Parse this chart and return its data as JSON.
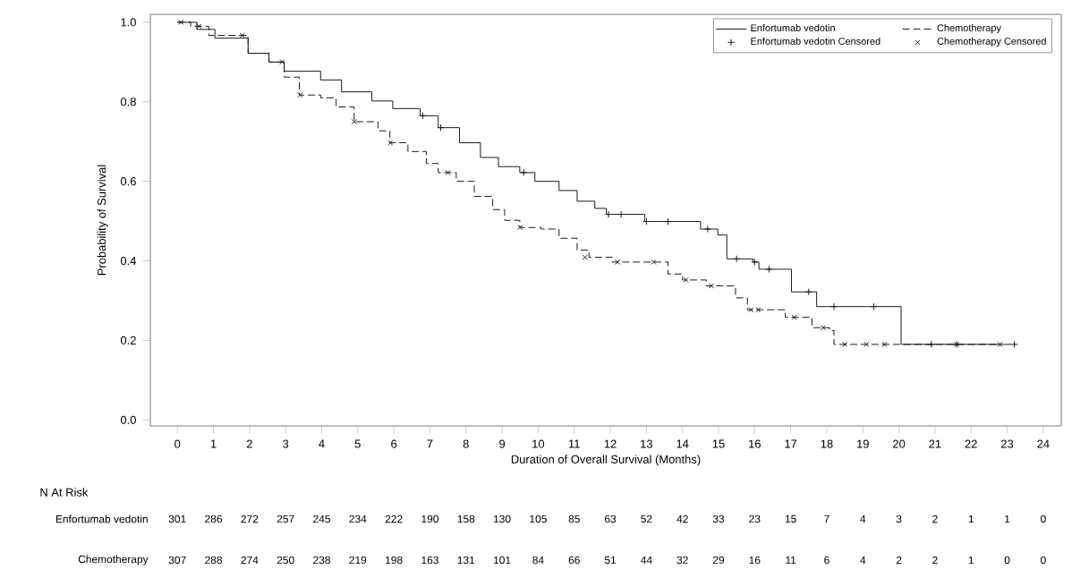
{
  "chart_data": {
    "type": "step",
    "xlabel": "Duration of Overall Survival (Months)",
    "ylabel": "Probability of Survival",
    "xlim": [
      -0.75,
      24.5
    ],
    "ylim": [
      -0.015,
      1.02
    ],
    "xticks": [
      0,
      1,
      2,
      3,
      4,
      5,
      6,
      7,
      8,
      9,
      10,
      11,
      12,
      13,
      14,
      15,
      16,
      17,
      18,
      19,
      20,
      21,
      22,
      23,
      24
    ],
    "yticks": [
      {
        "value": 0,
        "label": "0.0"
      },
      0.2,
      0.4,
      0.6,
      0.8,
      {
        "value": 1,
        "label": "1.0"
      }
    ],
    "legend": "top right",
    "series": [
      {
        "name": "Enfortumab vedotin",
        "color": "#1a1a1a",
        "line_style": "solid",
        "marker": "none",
        "x": [
          0,
          0.54,
          1.04,
          1.96,
          2.54,
          2.96,
          3.97,
          4.55,
          5.39,
          5.97,
          6.73,
          7.23,
          7.82,
          8.4,
          8.9,
          9.49,
          9.91,
          10.58,
          11.08,
          11.57,
          11.89,
          12.95,
          14.0,
          14.5,
          14.98,
          15.23,
          15.96,
          16.12,
          16.85,
          17.02,
          17.67,
          17.72,
          19.13,
          20.06,
          23.11
        ],
        "values": [
          1.0,
          0.982,
          0.96,
          0.922,
          0.9,
          0.877,
          0.855,
          0.825,
          0.802,
          0.783,
          0.765,
          0.735,
          0.697,
          0.66,
          0.637,
          0.622,
          0.6,
          0.577,
          0.55,
          0.532,
          0.517,
          0.499,
          0.499,
          0.48,
          0.465,
          0.405,
          0.397,
          0.379,
          0.379,
          0.322,
          0.322,
          0.285,
          0.285,
          0.19,
          0.19
        ]
      },
      {
        "name": "Chemotherapy",
        "color": "#1a1a1a",
        "line_style": "dashed",
        "marker": "none",
        "x": [
          0,
          0.37,
          0.87,
          1.96,
          2.54,
          2.96,
          3.38,
          3.97,
          4.4,
          4.9,
          5.56,
          5.89,
          6.39,
          6.9,
          7.23,
          7.73,
          8.23,
          8.74,
          9.07,
          9.49,
          10.08,
          10.58,
          11.08,
          11.41,
          12.06,
          13.36,
          13.6,
          14.0,
          14.66,
          15.47,
          15.8,
          16.6,
          16.85,
          17.42,
          17.59,
          18.08,
          18.2,
          22.8
        ],
        "values": [
          1.0,
          0.99,
          0.967,
          0.922,
          0.9,
          0.862,
          0.817,
          0.81,
          0.787,
          0.75,
          0.727,
          0.697,
          0.675,
          0.645,
          0.622,
          0.6,
          0.562,
          0.529,
          0.502,
          0.484,
          0.48,
          0.457,
          0.427,
          0.409,
          0.397,
          0.397,
          0.367,
          0.352,
          0.337,
          0.307,
          0.277,
          0.277,
          0.258,
          0.258,
          0.232,
          0.225,
          0.19,
          0.19
        ]
      },
      {
        "name": "Enfortumab vedotin Censored",
        "type": "scatter",
        "color": "#1a1a1a",
        "marker": "plus",
        "x": [
          6.8,
          7.3,
          9.6,
          11.95,
          12.3,
          13.0,
          13.6,
          14.7,
          15.5,
          16.0,
          16.4,
          17.5,
          18.2,
          19.3,
          20.9,
          21.6,
          23.2
        ],
        "values": [
          0.765,
          0.735,
          0.622,
          0.517,
          0.517,
          0.499,
          0.499,
          0.48,
          0.405,
          0.397,
          0.379,
          0.322,
          0.285,
          0.285,
          0.19,
          0.19,
          0.19
        ]
      },
      {
        "name": "Chemotherapy Censored",
        "type": "scatter",
        "color": "#1a1a1a",
        "marker": "cross",
        "x": [
          0.1,
          0.6,
          1.8,
          2.9,
          3.4,
          4.9,
          5.9,
          7.5,
          9.5,
          11.3,
          12.2,
          13.2,
          14.1,
          14.8,
          15.9,
          16.1,
          17.1,
          17.9,
          18.5,
          19.1,
          19.6,
          21.6,
          22.8
        ],
        "values": [
          1.0,
          0.99,
          0.967,
          0.9,
          0.817,
          0.75,
          0.697,
          0.622,
          0.484,
          0.409,
          0.397,
          0.397,
          0.352,
          0.337,
          0.277,
          0.277,
          0.258,
          0.232,
          0.19,
          0.19,
          0.19,
          0.19,
          0.19
        ]
      }
    ],
    "annotations": [
      "N At Risk",
      "Enfortumab vedotin",
      "301",
      "286",
      "272",
      "257",
      "245",
      "234",
      "222",
      "190",
      "158",
      "130",
      "105",
      "85",
      "63",
      "52",
      "42",
      "33",
      "23",
      "15",
      "7",
      "4",
      "3",
      "2",
      "1",
      "1",
      "0",
      "Chemotherapy",
      "307",
      "288",
      "274",
      "250",
      "238",
      "219",
      "198",
      "163",
      "131",
      "101",
      "84",
      "66",
      "51",
      "44",
      "32",
      "29",
      "16",
      "11",
      "6",
      "4",
      "2",
      "2",
      "1",
      "0",
      "0"
    ]
  }
}
